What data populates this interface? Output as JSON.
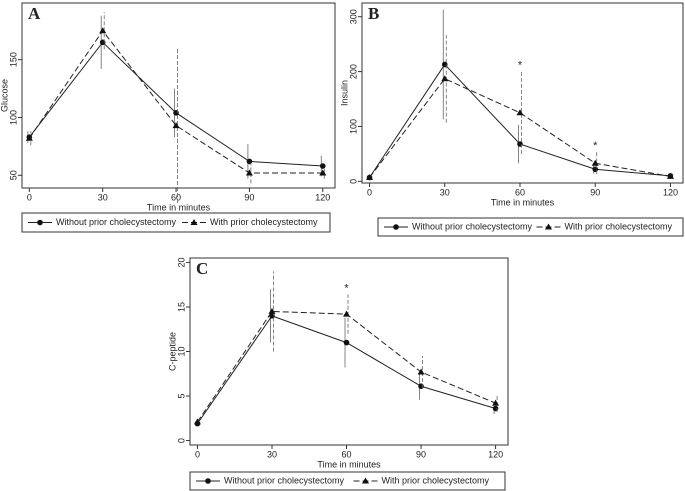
{
  "chart_data": [
    {
      "type": "line",
      "title": "A",
      "y_label": "Glucose",
      "x_label": "Time in minutes",
      "x": [
        0,
        30,
        60,
        90,
        120
      ],
      "xlim": [
        -3,
        125
      ],
      "xticks": [
        0,
        30,
        60,
        90,
        120
      ],
      "ylim": [
        39,
        199
      ],
      "yticks": [
        50,
        100,
        150
      ],
      "series": [
        {
          "name": "Without prior cholecystectomy",
          "color": "#222",
          "marker": "circle",
          "dashed": false,
          "values": [
            83,
            165,
            104,
            62,
            58
          ],
          "errors": [
            5,
            23,
            21,
            15,
            9
          ]
        },
        {
          "name": "With prior cholecystectomy",
          "color": "#222",
          "marker": "triangle",
          "dashed": true,
          "values": [
            82,
            175,
            93,
            52,
            52
          ],
          "errors": [
            6,
            16,
            67,
            9,
            5
          ]
        }
      ],
      "annotations": []
    },
    {
      "type": "line",
      "title": "B",
      "y_label": "Insulin",
      "x_label": "Time in minutes",
      "x": [
        0,
        30,
        60,
        90,
        120
      ],
      "xlim": [
        -3,
        125
      ],
      "xticks": [
        0,
        30,
        60,
        90,
        120
      ],
      "ylim": [
        -3,
        325
      ],
      "yticks": [
        0,
        100,
        200,
        300
      ],
      "series": [
        {
          "name": "Without prior cholecystectomy",
          "color": "#222",
          "marker": "circle",
          "dashed": false,
          "values": [
            7,
            213,
            68,
            22,
            10
          ],
          "errors": [
            2,
            100,
            35,
            8,
            4
          ]
        },
        {
          "name": "With prior cholecystectomy",
          "color": "#222",
          "marker": "triangle",
          "dashed": true,
          "values": [
            7,
            187,
            125,
            33,
            9
          ],
          "errors": [
            2,
            80,
            75,
            20,
            3
          ]
        }
      ],
      "annotations": [
        {
          "text": "*",
          "x": 60
        },
        {
          "text": "*",
          "x": 90
        }
      ]
    },
    {
      "type": "line",
      "title": "C",
      "y_label": "C-peptide",
      "x_label": "Time in minutes",
      "x": [
        0,
        30,
        60,
        90,
        120
      ],
      "xlim": [
        -3,
        125
      ],
      "xticks": [
        0,
        30,
        60,
        90,
        120
      ],
      "ylim": [
        -0.5,
        20.5
      ],
      "yticks": [
        0,
        5,
        10,
        15,
        20
      ],
      "series": [
        {
          "name": "Without prior cholecystectomy",
          "color": "#222",
          "marker": "circle",
          "dashed": false,
          "values": [
            1.9,
            14,
            11,
            6.1,
            3.6
          ],
          "errors": [
            0.3,
            3,
            2.8,
            1.5,
            0.6
          ]
        },
        {
          "name": "With prior cholecystectomy",
          "color": "#222",
          "marker": "triangle",
          "dashed": true,
          "values": [
            2.1,
            14.5,
            14.2,
            7.7,
            4.2
          ],
          "errors": [
            0.3,
            4.5,
            2.2,
            1.8,
            1
          ]
        }
      ],
      "annotations": [
        {
          "text": "*",
          "x": 60
        }
      ]
    }
  ]
}
